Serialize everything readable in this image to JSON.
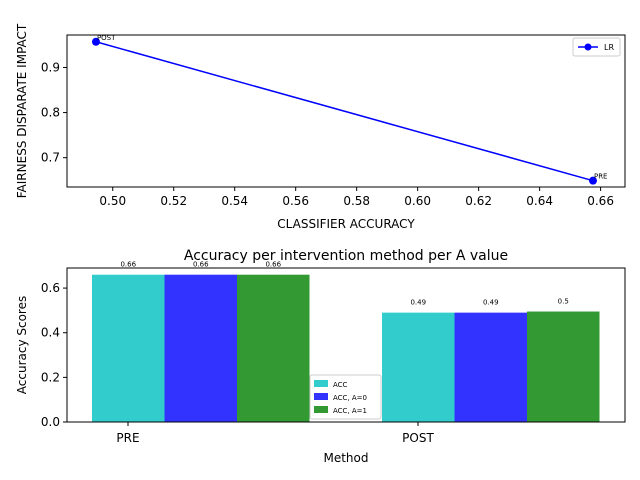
{
  "chart_data": [
    {
      "type": "line",
      "xlabel": "CLASSIFIER ACCURACY",
      "ylabel": "FAIRNESS DISPARATE IMPACT",
      "xlim": [
        0.485,
        0.668
      ],
      "ylim": [
        0.635,
        0.972
      ],
      "xticks": [
        0.5,
        0.52,
        0.54,
        0.56,
        0.58,
        0.6,
        0.62,
        0.64,
        0.66
      ],
      "xtick_labels": [
        "0.50",
        "0.52",
        "0.54",
        "0.56",
        "0.58",
        "0.60",
        "0.62",
        "0.64",
        "0.66"
      ],
      "yticks": [
        0.7,
        0.8,
        0.9
      ],
      "ytick_labels": [
        "0.7",
        "0.8",
        "0.9"
      ],
      "legend_position": "top-right",
      "grid": false,
      "series": [
        {
          "name": "LR",
          "color": "#0000ff",
          "points": [
            {
              "x": 0.4945,
              "y": 0.957,
              "label": "POST"
            },
            {
              "x": 0.6575,
              "y": 0.649,
              "label": "PRE"
            }
          ]
        }
      ]
    },
    {
      "type": "bar",
      "title": "Accuracy per intervention method per A value",
      "xlabel": "Method",
      "ylabel": "Accuracy Scores",
      "categories": [
        "PRE",
        "POST"
      ],
      "ylim": [
        0,
        0.69
      ],
      "yticks": [
        0.0,
        0.2,
        0.4,
        0.6
      ],
      "ytick_labels": [
        "0.0",
        "0.2",
        "0.4",
        "0.6"
      ],
      "legend_position": "lower-center",
      "grid": false,
      "series": [
        {
          "name": "ACC",
          "color": "#33cccc",
          "values": [
            0.66,
            0.49
          ],
          "labels": [
            "0.66",
            "0.49"
          ]
        },
        {
          "name": "ACC, A=0",
          "color": "#3333ff",
          "values": [
            0.66,
            0.49
          ],
          "labels": [
            "0.66",
            "0.49"
          ]
        },
        {
          "name": "ACC, A=1",
          "color": "#339933",
          "values": [
            0.66,
            0.495
          ],
          "labels": [
            "0.66",
            "0.5"
          ]
        }
      ]
    }
  ]
}
